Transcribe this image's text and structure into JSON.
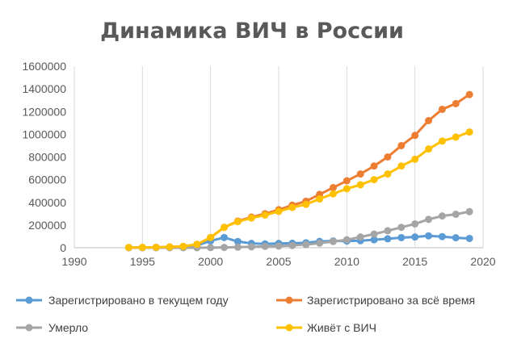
{
  "chart_data": {
    "type": "line",
    "title": "Динамика ВИЧ в России",
    "xlabel": "",
    "ylabel": "",
    "xlim": [
      1990,
      2020
    ],
    "ylim": [
      0,
      1600000
    ],
    "x_ticks": [
      "1990",
      "1995",
      "2000",
      "2005",
      "2010",
      "2015",
      "2020"
    ],
    "y_ticks": [
      "0",
      "200000",
      "400000",
      "600000",
      "800000",
      "1000000",
      "1200000",
      "1400000",
      "1600000"
    ],
    "grid": "vertical",
    "legend_position": "bottom",
    "x": [
      1994,
      1995,
      1996,
      1997,
      1998,
      1999,
      2000,
      2001,
      2002,
      2003,
      2004,
      2005,
      2006,
      2007,
      2008,
      2009,
      2010,
      2011,
      2012,
      2013,
      2014,
      2015,
      2016,
      2017,
      2018,
      2019
    ],
    "series": [
      {
        "name": "Зарегистрировано в текущем году",
        "color": "#5b9bd5",
        "values": [
          1000,
          1000,
          1000,
          2000,
          3000,
          20000,
          60000,
          90000,
          55000,
          38000,
          34000,
          38000,
          40000,
          44000,
          56000,
          60000,
          59000,
          62000,
          70000,
          79000,
          89000,
          95000,
          105000,
          98000,
          88000,
          82000
        ]
      },
      {
        "name": "Зарегистрировано за всё время",
        "color": "#ed7d31",
        "values": [
          2000,
          3000,
          4000,
          7000,
          12000,
          30000,
          90000,
          180000,
          235000,
          270000,
          300000,
          335000,
          375000,
          410000,
          470000,
          530000,
          590000,
          650000,
          720000,
          800000,
          900000,
          990000,
          1120000,
          1220000,
          1270000,
          1350000
        ]
      },
      {
        "name": "Умерло",
        "color": "#a5a5a5",
        "values": [
          0,
          0,
          0,
          0,
          0,
          0,
          1000,
          3000,
          5000,
          8000,
          12000,
          15000,
          20000,
          28000,
          40000,
          55000,
          70000,
          95000,
          120000,
          150000,
          180000,
          210000,
          250000,
          280000,
          295000,
          318000
        ]
      },
      {
        "name": "Живёт с ВИЧ",
        "color": "#ffc000",
        "values": [
          2000,
          3000,
          4000,
          7000,
          12000,
          30000,
          90000,
          180000,
          230000,
          262000,
          288000,
          320000,
          355000,
          382000,
          430000,
          475000,
          520000,
          555000,
          600000,
          650000,
          720000,
          780000,
          870000,
          940000,
          975000,
          1020000
        ]
      }
    ]
  }
}
